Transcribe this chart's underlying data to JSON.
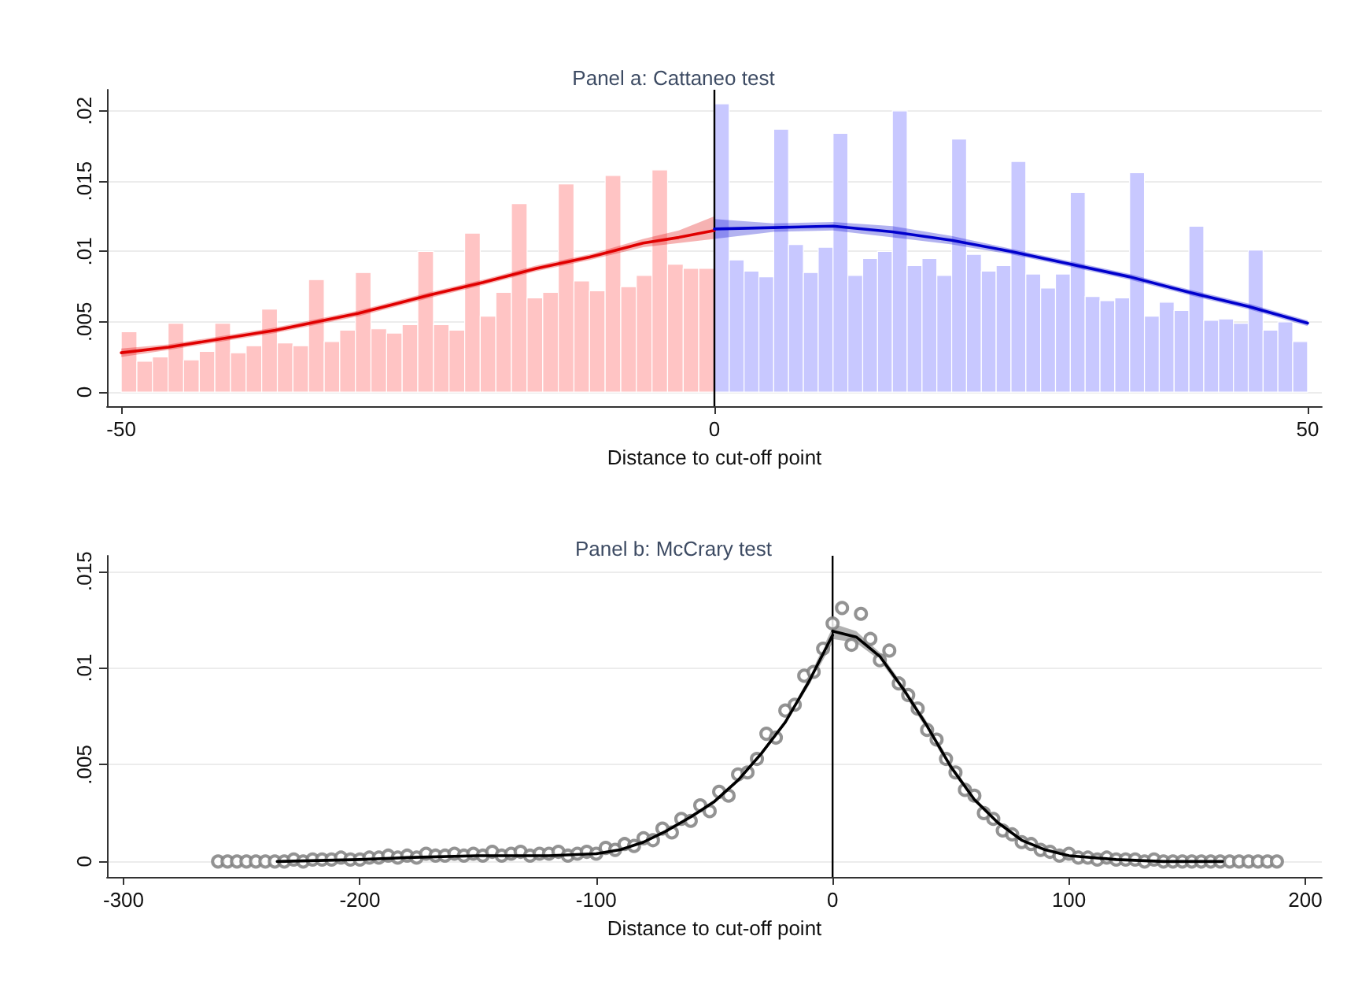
{
  "chart_data": [
    {
      "type": "histogram",
      "title": "Panel a: Cattaneo test",
      "xlabel": "Distance to cut-off point",
      "xlim": [
        -51.2,
        51.2
      ],
      "xticks": [
        -50,
        0,
        50
      ],
      "ylim": [
        -0.001,
        0.0215
      ],
      "yticks": [
        0,
        {
          "value": 0.005,
          "label": ".005"
        },
        {
          "value": 0.01,
          "label": ".01"
        },
        {
          "value": 0.015,
          "label": ".015"
        },
        {
          "value": 0.02,
          "label": ".02"
        }
      ],
      "grid": "y",
      "ref_lines": [
        {
          "axis": "x",
          "value": 0,
          "color": "#000000"
        }
      ],
      "series": [
        {
          "color": "#ffc4c4",
          "bins": [
            -50,
            -48.68,
            -47.37,
            -46.05,
            -44.74,
            -43.42,
            -42.11,
            -40.79,
            -39.47,
            -38.16,
            -36.84,
            -35.53,
            -34.21,
            -32.89,
            -31.58,
            -30.26,
            -28.95,
            -27.63,
            -26.32,
            -25,
            -23.68,
            -22.37,
            -21.05,
            -19.74,
            -18.42,
            -17.11,
            -15.79,
            -14.47,
            -13.16,
            -11.84,
            -10.53,
            -9.21,
            -7.89,
            -6.58,
            -5.26,
            -3.95,
            -2.63,
            -1.32,
            0
          ],
          "values": [
            0.0043,
            0.0022,
            0.0025,
            0.0049,
            0.0023,
            0.0029,
            0.0049,
            0.0028,
            0.0033,
            0.0059,
            0.0035,
            0.0033,
            0.008,
            0.0036,
            0.0044,
            0.0085,
            0.0045,
            0.0042,
            0.0048,
            0.01,
            0.0048,
            0.0044,
            0.0113,
            0.0054,
            0.0071,
            0.0134,
            0.0067,
            0.0071,
            0.0148,
            0.0079,
            0.0072,
            0.0154,
            0.0075,
            0.0083,
            0.0158,
            0.0091,
            0.0088,
            0.0088
          ]
        },
        {
          "color": "#c8c8ff",
          "bins": [
            0,
            1.25,
            2.5,
            3.75,
            5,
            6.25,
            7.5,
            8.75,
            10,
            11.25,
            12.5,
            13.75,
            15,
            16.25,
            17.5,
            18.75,
            20,
            21.25,
            22.5,
            23.75,
            25,
            26.25,
            27.5,
            28.75,
            30,
            31.25,
            32.5,
            33.75,
            35,
            36.25,
            37.5,
            38.75,
            40,
            41.25,
            42.5,
            43.75,
            45,
            46.25,
            47.5,
            48.75,
            50
          ],
          "values": [
            0.0205,
            0.0094,
            0.0086,
            0.0082,
            0.0187,
            0.0105,
            0.0085,
            0.0103,
            0.0184,
            0.0083,
            0.0095,
            0.01,
            0.02,
            0.009,
            0.0095,
            0.0083,
            0.018,
            0.0098,
            0.0086,
            0.009,
            0.0164,
            0.0084,
            0.0074,
            0.0084,
            0.0142,
            0.0068,
            0.0065,
            0.0067,
            0.0156,
            0.0054,
            0.0064,
            0.0058,
            0.0118,
            0.0051,
            0.0052,
            0.0049,
            0.0101,
            0.0044,
            0.005,
            0.0036
          ]
        },
        {
          "type": "line",
          "color": "#e00000",
          "x": [
            -50,
            -46,
            -37,
            -30,
            -24,
            -19.5,
            -15,
            -10.5,
            -6,
            -3,
            0
          ],
          "values": [
            0.0028,
            0.0032,
            0.0044,
            0.0056,
            0.0069,
            0.0078,
            0.0088,
            0.0096,
            0.0106,
            0.011,
            0.0115
          ],
          "lower": [
            0.0025,
            0.003,
            0.0042,
            0.0054,
            0.0067,
            0.0076,
            0.0086,
            0.0094,
            0.0103,
            0.0106,
            0.0109
          ],
          "upper": [
            0.0031,
            0.0034,
            0.0046,
            0.0058,
            0.0071,
            0.008,
            0.009,
            0.0098,
            0.0109,
            0.0115,
            0.0125
          ]
        },
        {
          "type": "line",
          "color": "#0000cc",
          "x": [
            0,
            5,
            10,
            15,
            20,
            25,
            30,
            35,
            40,
            45,
            50
          ],
          "values": [
            0.0116,
            0.0117,
            0.0118,
            0.0114,
            0.0108,
            0.01,
            0.0091,
            0.0082,
            0.0071,
            0.0061,
            0.0049
          ],
          "lower": [
            0.0109,
            0.0114,
            0.0115,
            0.011,
            0.0105,
            0.0098,
            0.0089,
            0.008,
            0.0069,
            0.0059,
            0.0047
          ],
          "upper": [
            0.0123,
            0.012,
            0.0121,
            0.0118,
            0.0111,
            0.0102,
            0.0093,
            0.0084,
            0.0073,
            0.0063,
            0.0051
          ]
        }
      ]
    },
    {
      "type": "scatter",
      "title": "Panel b: McCrary test",
      "xlabel": "Distance to cut-off point",
      "xlim": [
        -307,
        207
      ],
      "xticks": [
        -300,
        -200,
        -100,
        0,
        100,
        200
      ],
      "ylim": [
        -0.0008,
        0.0158
      ],
      "yticks": [
        0,
        {
          "value": 0.005,
          "label": ".005"
        },
        {
          "value": 0.01,
          "label": ".01"
        },
        {
          "value": 0.015,
          "label": ".015"
        }
      ],
      "grid": "y",
      "marker": "circle",
      "ref_lines": [
        {
          "axis": "x",
          "value": 0,
          "color": "#000000"
        }
      ],
      "series": [
        {
          "color": "#808080",
          "x": [
            -260,
            -256,
            -252,
            -248,
            -244,
            -240,
            -236,
            -232,
            -228,
            -224,
            -220,
            -216,
            -212,
            -208,
            -204,
            -200,
            -196,
            -192,
            -188,
            -184,
            -180,
            -176,
            -172,
            -168,
            -164,
            -160,
            -156,
            -152,
            -148,
            -144,
            -140,
            -136,
            -132,
            -128,
            -124,
            -120,
            -116,
            -112,
            -108,
            -104,
            -100,
            -96,
            -92,
            -88,
            -84,
            -80,
            -76,
            -72,
            -68,
            -64,
            -60,
            -56,
            -52,
            -48,
            -44,
            -40,
            -36,
            -32,
            -28,
            -24,
            -20,
            -16,
            -12,
            -8,
            -4,
            0,
            4,
            8,
            12,
            16,
            20,
            24,
            28,
            32,
            36,
            40,
            44,
            48,
            52,
            56,
            60,
            64,
            68,
            72,
            76,
            80,
            84,
            88,
            92,
            96,
            100,
            104,
            108,
            112,
            116,
            120,
            124,
            128,
            132,
            136,
            140,
            144,
            148,
            152,
            156,
            160,
            164,
            168,
            172,
            176,
            180,
            184,
            188
          ],
          "values": [
            0,
            0,
            0,
            0,
            0,
            0,
            0,
            0,
            0.0001,
            0,
            0.0001,
            0.0001,
            0.0001,
            0.0002,
            0.0001,
            0.0001,
            0.0002,
            0.0002,
            0.0003,
            0.0002,
            0.0003,
            0.0002,
            0.0004,
            0.0003,
            0.0003,
            0.0004,
            0.0003,
            0.0004,
            0.0003,
            0.0005,
            0.0003,
            0.0004,
            0.0005,
            0.0003,
            0.0004,
            0.0004,
            0.0005,
            0.0003,
            0.0004,
            0.0005,
            0.0004,
            0.0007,
            0.0006,
            0.0009,
            0.0008,
            0.0012,
            0.0011,
            0.0017,
            0.0015,
            0.0022,
            0.0021,
            0.0029,
            0.0026,
            0.0036,
            0.0034,
            0.0045,
            0.0046,
            0.0053,
            0.0066,
            0.0064,
            0.0078,
            0.0081,
            0.0096,
            0.0098,
            0.011,
            0.0123,
            0.0131,
            0.0112,
            0.0128,
            0.0115,
            0.0104,
            0.0109,
            0.0092,
            0.0086,
            0.0079,
            0.0068,
            0.0063,
            0.0053,
            0.0046,
            0.0037,
            0.0034,
            0.0025,
            0.0022,
            0.0016,
            0.0014,
            0.001,
            0.0009,
            0.0006,
            0.0005,
            0.0003,
            0.0004,
            0.0002,
            0.0002,
            0.0001,
            0.0002,
            0.0001,
            0.0001,
            0.0001,
            0,
            0.0001,
            0,
            0,
            0,
            0,
            0,
            0,
            0,
            0,
            0,
            0,
            0,
            0,
            0
          ]
        },
        {
          "type": "line",
          "color": "#000000",
          "marker": "none",
          "x": [
            -235,
            -200,
            -180,
            -150,
            -120,
            -100,
            -90,
            -80,
            -70,
            -60,
            -50,
            -40,
            -30,
            -20,
            -10,
            0
          ],
          "values": [
            0,
            0.0001,
            0.0002,
            0.0003,
            0.0003,
            0.0004,
            0.0006,
            0.001,
            0.0016,
            0.0023,
            0.0031,
            0.0042,
            0.0056,
            0.0072,
            0.0093,
            0.0117
          ],
          "lower": [
            0,
            0,
            0.0001,
            0.0002,
            0.0002,
            0.0003,
            0.0005,
            0.0009,
            0.0015,
            0.0022,
            0.003,
            0.0041,
            0.0055,
            0.0071,
            0.0091,
            0.0113
          ],
          "upper": [
            0.0001,
            0.0002,
            0.0003,
            0.0004,
            0.0004,
            0.0005,
            0.0007,
            0.0011,
            0.0017,
            0.0024,
            0.0032,
            0.0043,
            0.0057,
            0.0073,
            0.0095,
            0.0121
          ]
        },
        {
          "type": "line",
          "color": "#000000",
          "marker": "none",
          "x": [
            0,
            10,
            20,
            30,
            40,
            50,
            60,
            70,
            80,
            90,
            100,
            120,
            140,
            165
          ],
          "values": [
            0.0119,
            0.0116,
            0.0106,
            0.0089,
            0.007,
            0.0049,
            0.0032,
            0.002,
            0.0011,
            0.0006,
            0.0003,
            0.0001,
            0,
            0
          ],
          "lower": [
            0.0115,
            0.0113,
            0.0104,
            0.0087,
            0.0068,
            0.0047,
            0.0031,
            0.0019,
            0.001,
            0.0005,
            0.0002,
            0,
            0,
            0
          ],
          "upper": [
            0.0123,
            0.0119,
            0.0108,
            0.0091,
            0.0072,
            0.0051,
            0.0033,
            0.0021,
            0.0012,
            0.0007,
            0.0004,
            0.0002,
            0.0001,
            0.0001
          ]
        }
      ]
    }
  ]
}
